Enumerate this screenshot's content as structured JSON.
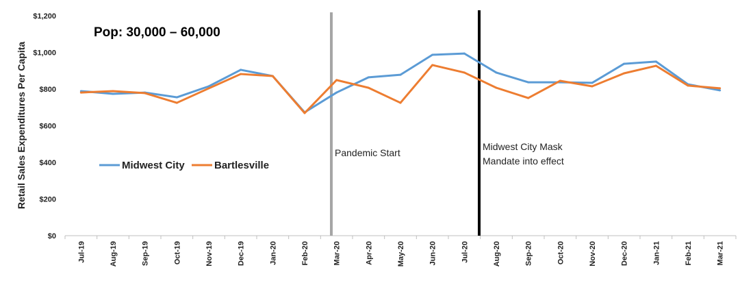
{
  "chart_data": {
    "type": "line",
    "title": "Pop: 30,000 – 60,000",
    "xlabel": "",
    "ylabel": "Retail Sales Expenditures Per Capita",
    "ylim": [
      0,
      1200
    ],
    "yticks": [
      "$0",
      "$200",
      "$400",
      "$600",
      "$800",
      "$1,000",
      "$1,200"
    ],
    "categories": [
      "Jul-19",
      "Aug-19",
      "Sep-19",
      "Oct-19",
      "Nov-19",
      "Dec-19",
      "Jan-20",
      "Feb-20",
      "Mar-20",
      "Apr-20",
      "May-20",
      "Jun-20",
      "Jul-20",
      "Aug-20",
      "Sep-20",
      "Oct-20",
      "Nov-20",
      "Dec-20",
      "Jan-21",
      "Feb-21",
      "Mar-21"
    ],
    "series": [
      {
        "name": "Midwest City",
        "color": "#5b9bd5",
        "values": [
          789,
          774,
          781,
          755,
          815,
          905,
          871,
          673,
          781,
          864,
          878,
          987,
          994,
          890,
          837,
          837,
          834,
          938,
          950,
          826,
          793
        ]
      },
      {
        "name": "Bartlesville",
        "color": "#ed7d31",
        "values": [
          781,
          789,
          778,
          725,
          804,
          882,
          871,
          669,
          849,
          807,
          725,
          931,
          890,
          807,
          751,
          845,
          815,
          886,
          927,
          819,
          804
        ]
      }
    ],
    "annotations": [
      {
        "label": "Pandemic Start",
        "lines": [
          "Pandemic Start"
        ],
        "color": "#a6a6a6"
      },
      {
        "label": "Midwest City Mask Mandate into effect",
        "lines": [
          "Midwest City Mask",
          "Mandate into effect"
        ],
        "color": "#000000"
      }
    ],
    "legend": "center-left",
    "grid": false
  }
}
